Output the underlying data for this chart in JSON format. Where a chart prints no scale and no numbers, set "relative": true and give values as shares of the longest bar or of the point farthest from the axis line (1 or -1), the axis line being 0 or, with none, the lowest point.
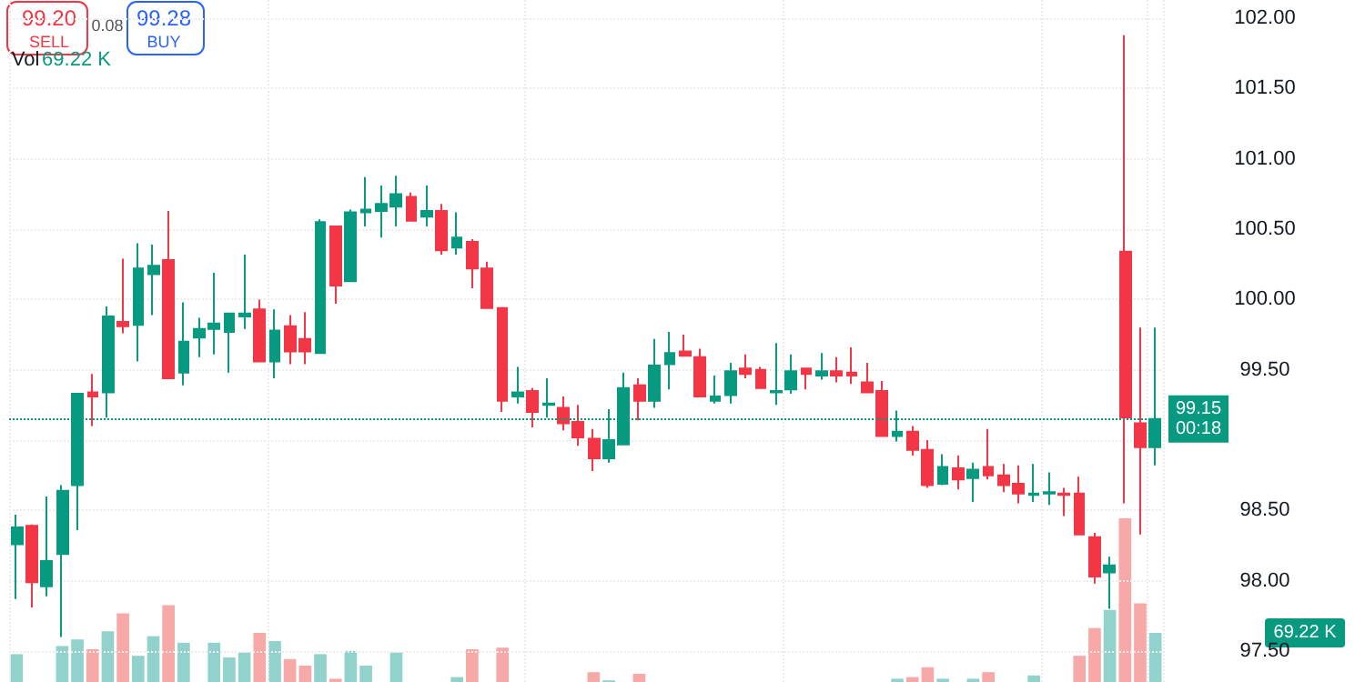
{
  "chart_data": [
    {
      "type": "candlestick",
      "categories": [
        null,
        null,
        null,
        null,
        null,
        null,
        null,
        null,
        null,
        null,
        null,
        null,
        null,
        null,
        null,
        null,
        null,
        null,
        null,
        null,
        null,
        null,
        null,
        null,
        null,
        null,
        null,
        null,
        null,
        null,
        null,
        null,
        null,
        null,
        null,
        null,
        null,
        null,
        null,
        null,
        null,
        null,
        null,
        null,
        null,
        null,
        null,
        null,
        null,
        null,
        null,
        null,
        null,
        null,
        null,
        null,
        null,
        null,
        null,
        null,
        null,
        null,
        null,
        null,
        null,
        null,
        null,
        null,
        null,
        null,
        null,
        null,
        null,
        null,
        null,
        null
      ],
      "ohlc": [
        [
          98.26,
          98.47,
          97.87,
          98.38
        ],
        [
          98.39,
          98.4,
          97.81,
          97.99
        ],
        [
          97.96,
          98.6,
          97.89,
          98.14
        ],
        [
          98.19,
          98.68,
          97.6,
          98.64
        ],
        [
          98.68,
          99.33,
          98.36,
          99.33
        ],
        [
          99.34,
          99.47,
          99.1,
          99.31
        ],
        [
          99.34,
          99.95,
          99.16,
          99.88
        ],
        [
          99.84,
          100.29,
          99.76,
          99.81
        ],
        [
          99.82,
          100.4,
          99.56,
          100.22
        ],
        [
          100.18,
          100.39,
          99.89,
          100.24
        ],
        [
          100.28,
          100.63,
          99.44,
          99.44
        ],
        [
          99.48,
          99.98,
          99.39,
          99.7
        ],
        [
          99.73,
          99.87,
          99.59,
          99.79
        ],
        [
          99.79,
          100.19,
          99.61,
          99.83
        ],
        [
          99.77,
          99.9,
          99.48,
          99.9
        ],
        [
          99.88,
          100.32,
          99.79,
          99.9
        ],
        [
          99.93,
          100.0,
          99.56,
          99.56
        ],
        [
          99.56,
          99.93,
          99.44,
          99.78
        ],
        [
          99.81,
          99.89,
          99.54,
          99.63
        ],
        [
          99.72,
          99.91,
          99.54,
          99.63
        ],
        [
          99.62,
          100.57,
          99.62,
          100.55
        ],
        [
          100.52,
          100.52,
          99.97,
          100.1
        ],
        [
          100.13,
          100.64,
          100.13,
          100.62
        ],
        [
          100.62,
          100.87,
          100.52,
          100.64
        ],
        [
          100.63,
          100.81,
          100.44,
          100.68
        ],
        [
          100.66,
          100.88,
          100.52,
          100.75
        ],
        [
          100.73,
          100.76,
          100.56,
          100.56
        ],
        [
          100.59,
          100.81,
          100.52,
          100.63
        ],
        [
          100.63,
          100.68,
          100.32,
          100.35
        ],
        [
          100.37,
          100.62,
          100.32,
          100.44
        ],
        [
          100.41,
          100.43,
          100.08,
          100.22
        ],
        [
          100.22,
          100.27,
          99.94,
          99.94
        ],
        [
          99.94,
          99.94,
          99.2,
          99.28
        ],
        [
          99.31,
          99.52,
          99.26,
          99.34
        ],
        [
          99.35,
          99.37,
          99.09,
          99.2
        ],
        [
          99.25,
          99.44,
          99.16,
          99.26
        ],
        [
          99.23,
          99.31,
          99.07,
          99.12
        ],
        [
          99.13,
          99.25,
          98.96,
          99.02
        ],
        [
          99.01,
          99.08,
          98.78,
          98.87
        ],
        [
          98.87,
          99.22,
          98.84,
          99.0
        ],
        [
          98.97,
          99.48,
          98.97,
          99.37
        ],
        [
          99.39,
          99.44,
          99.14,
          99.28
        ],
        [
          99.28,
          99.72,
          99.23,
          99.53
        ],
        [
          99.54,
          99.77,
          99.36,
          99.62
        ],
        [
          99.63,
          99.75,
          99.6,
          99.6
        ],
        [
          99.59,
          99.65,
          99.31,
          99.31
        ],
        [
          99.28,
          99.46,
          99.26,
          99.31
        ],
        [
          99.32,
          99.55,
          99.26,
          99.49
        ],
        [
          99.51,
          99.61,
          99.44,
          99.47
        ],
        [
          99.5,
          99.52,
          99.37,
          99.37
        ],
        [
          99.34,
          99.69,
          99.25,
          99.35
        ],
        [
          99.36,
          99.61,
          99.33,
          99.49
        ],
        [
          99.51,
          99.51,
          99.36,
          99.47
        ],
        [
          99.46,
          99.62,
          99.43,
          99.49
        ],
        [
          99.49,
          99.59,
          99.41,
          99.46
        ],
        [
          99.48,
          99.66,
          99.4,
          99.46
        ],
        [
          99.41,
          99.55,
          99.34,
          99.34
        ],
        [
          99.35,
          99.42,
          99.03,
          99.03
        ],
        [
          99.03,
          99.21,
          98.99,
          99.06
        ],
        [
          99.06,
          99.1,
          98.89,
          98.93
        ],
        [
          98.93,
          99.0,
          98.66,
          98.68
        ],
        [
          98.69,
          98.9,
          98.68,
          98.81
        ],
        [
          98.8,
          98.89,
          98.65,
          98.72
        ],
        [
          98.73,
          98.84,
          98.56,
          98.79
        ],
        [
          98.81,
          99.08,
          98.72,
          98.75
        ],
        [
          98.75,
          98.83,
          98.63,
          98.68
        ],
        [
          98.69,
          98.82,
          98.55,
          98.62
        ],
        [
          98.61,
          98.83,
          98.56,
          98.62
        ],
        [
          98.62,
          98.77,
          98.54,
          98.63
        ],
        [
          98.62,
          98.66,
          98.46,
          98.61
        ],
        [
          98.62,
          98.74,
          98.33,
          98.33
        ],
        [
          98.31,
          98.34,
          97.98,
          98.03
        ],
        [
          98.06,
          98.17,
          97.8,
          98.11
        ],
        [
          100.34,
          101.88,
          98.55,
          99.16
        ],
        [
          99.12,
          99.8,
          98.33,
          98.95
        ],
        [
          98.95,
          99.8,
          98.82,
          99.15
        ]
      ],
      "colors": [
        "#089981",
        "#f23645",
        "#089981",
        "#089981",
        "#089981",
        "#f23645",
        "#089981",
        "#f23645",
        "#089981",
        "#089981",
        "#f23645",
        "#089981",
        "#089981",
        "#089981",
        "#089981",
        "#089981",
        "#f23645",
        "#089981",
        "#f23645",
        "#f23645",
        "#089981",
        "#f23645",
        "#089981",
        "#089981",
        "#089981",
        "#089981",
        "#f23645",
        "#089981",
        "#f23645",
        "#089981",
        "#f23645",
        "#f23645",
        "#f23645",
        "#089981",
        "#f23645",
        "#089981",
        "#f23645",
        "#f23645",
        "#f23645",
        "#089981",
        "#089981",
        "#f23645",
        "#089981",
        "#089981",
        "#f23645",
        "#f23645",
        "#089981",
        "#089981",
        "#f23645",
        "#f23645",
        "#089981",
        "#089981",
        "#f23645",
        "#089981",
        "#f23645",
        "#f23645",
        "#f23645",
        "#f23645",
        "#089981",
        "#f23645",
        "#f23645",
        "#089981",
        "#f23645",
        "#089981",
        "#f23645",
        "#f23645",
        "#f23645",
        "#089981",
        "#089981",
        "#f23645",
        "#f23645",
        "#f23645",
        "#089981",
        "#f23645",
        "#f23645",
        "#089981"
      ],
      "ylim": [
        97.28,
        102.13
      ],
      "yticks": [
        {
          "value": 97.5,
          "label": "97.50"
        },
        {
          "value": 98,
          "label": "98.00"
        },
        {
          "value": 98.5,
          "label": "98.50"
        },
        {
          "value": 99,
          "label": null
        },
        {
          "value": 99.5,
          "label": "99.50"
        },
        {
          "value": 100,
          "label": "100.00"
        },
        {
          "value": 100.5,
          "label": "100.50"
        },
        {
          "value": 101,
          "label": "101.00"
        },
        {
          "value": 101.5,
          "label": "101.50"
        },
        {
          "value": 102,
          "label": "102.00"
        }
      ],
      "grid": true,
      "tick_labels": "y",
      "ref_lines": [
        {
          "axis": "y",
          "value": 99.15,
          "label": "99.15\n00:18",
          "color": "#089981",
          "line_style": "dotted"
        }
      ],
      "annotations": [
        "99.20",
        "SELL",
        "0.08",
        "99.28",
        "BUY",
        "Vol",
        "69.22 K",
        "69.22 K"
      ]
    },
    {
      "type": "bar",
      "relative": true,
      "tick_labels": false,
      "categories": [
        null,
        null,
        null,
        null,
        null,
        null,
        null,
        null,
        null,
        null,
        null,
        null,
        null,
        null,
        null,
        null,
        null,
        null,
        null,
        null,
        null,
        null,
        null,
        null,
        null,
        null,
        null,
        null,
        null,
        null,
        null,
        null,
        null,
        null,
        null,
        null,
        null,
        null,
        null,
        null,
        null,
        null,
        null,
        null,
        null,
        null,
        null,
        null,
        null,
        null,
        null,
        null,
        null,
        null,
        null,
        null,
        null,
        null,
        null,
        null,
        null,
        null,
        null,
        null,
        null,
        null,
        null,
        null,
        null,
        null,
        null,
        null,
        null,
        null,
        null,
        null
      ],
      "values": [
        0.17,
        null,
        null,
        0.22,
        0.26,
        0.2,
        0.31,
        0.42,
        0.16,
        0.28,
        0.47,
        0.24,
        null,
        0.24,
        0.15,
        0.18,
        0.3,
        0.25,
        0.14,
        0.1,
        0.17,
        0.02,
        0.19,
        0.1,
        null,
        0.18,
        null,
        null,
        null,
        0.03,
        0.2,
        null,
        0.21,
        null,
        null,
        null,
        null,
        null,
        0.06,
        0.01,
        null,
        0.05,
        null,
        null,
        null,
        null,
        null,
        null,
        null,
        null,
        null,
        null,
        null,
        null,
        null,
        null,
        null,
        null,
        0.02,
        0.03,
        0.09,
        0.02,
        null,
        0.02,
        0.06,
        null,
        null,
        0.04,
        null,
        null,
        0.16,
        0.33,
        0.44,
        1,
        0.48,
        0.3
      ],
      "colors": [
        "#92d2cc",
        "#f7a9a7",
        "#92d2cc",
        "#92d2cc",
        "#92d2cc",
        "#f7a9a7",
        "#92d2cc",
        "#f7a9a7",
        "#92d2cc",
        "#92d2cc",
        "#f7a9a7",
        "#92d2cc",
        "#92d2cc",
        "#92d2cc",
        "#92d2cc",
        "#92d2cc",
        "#f7a9a7",
        "#92d2cc",
        "#f7a9a7",
        "#f7a9a7",
        "#92d2cc",
        "#f7a9a7",
        "#92d2cc",
        "#92d2cc",
        "#92d2cc",
        "#92d2cc",
        "#f7a9a7",
        "#92d2cc",
        "#f7a9a7",
        "#92d2cc",
        "#f7a9a7",
        "#f7a9a7",
        "#f7a9a7",
        "#92d2cc",
        "#f7a9a7",
        "#92d2cc",
        "#f7a9a7",
        "#f7a9a7",
        "#f7a9a7",
        "#92d2cc",
        "#92d2cc",
        "#f7a9a7",
        "#92d2cc",
        "#92d2cc",
        "#f7a9a7",
        "#f7a9a7",
        "#92d2cc",
        "#92d2cc",
        "#f7a9a7",
        "#f7a9a7",
        "#92d2cc",
        "#92d2cc",
        "#f7a9a7",
        "#92d2cc",
        "#f7a9a7",
        "#f7a9a7",
        "#f7a9a7",
        "#f7a9a7",
        "#92d2cc",
        "#f7a9a7",
        "#f7a9a7",
        "#92d2cc",
        "#f7a9a7",
        "#92d2cc",
        "#f7a9a7",
        "#f7a9a7",
        "#f7a9a7",
        "#92d2cc",
        "#92d2cc",
        "#f7a9a7",
        "#f7a9a7",
        "#f7a9a7",
        "#92d2cc",
        "#f7a9a7",
        "#f7a9a7",
        "#92d2cc"
      ]
    }
  ]
}
